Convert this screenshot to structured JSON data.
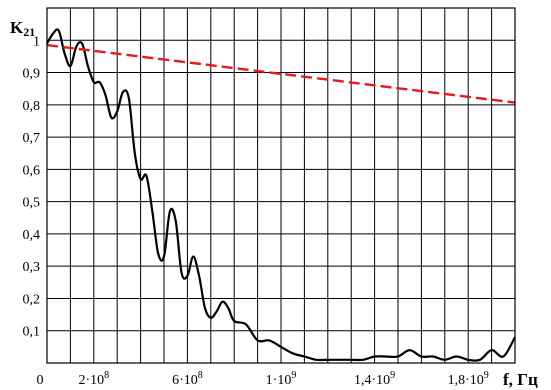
{
  "chart_data": {
    "type": "line",
    "ylabel": "K",
    "ylabel_subscript": "21",
    "xlabel": "f, Гц",
    "xlim": [
      0,
      2000000000
    ],
    "ylim": [
      0,
      1.1
    ],
    "grid": true,
    "y_ticks": [
      {
        "value": 0.1,
        "label": "0,1"
      },
      {
        "value": 0.2,
        "label": "0,2"
      },
      {
        "value": 0.3,
        "label": "0,3"
      },
      {
        "value": 0.4,
        "label": "0,4"
      },
      {
        "value": 0.5,
        "label": "0,5"
      },
      {
        "value": 0.6,
        "label": "0,6"
      },
      {
        "value": 0.7,
        "label": "0,7"
      },
      {
        "value": 0.8,
        "label": "0,8"
      },
      {
        "value": 0.9,
        "label": "0,9"
      },
      {
        "value": 1.0,
        "label": "1"
      }
    ],
    "x_ticks": [
      {
        "value": 0,
        "label": "0",
        "exp": ""
      },
      {
        "value": 200000000,
        "label": "2·10",
        "exp": "8"
      },
      {
        "value": 600000000,
        "label": "6·10",
        "exp": "8"
      },
      {
        "value": 1000000000,
        "label": "1·10",
        "exp": "9"
      },
      {
        "value": 1400000000,
        "label": "1,4·10",
        "exp": "9"
      },
      {
        "value": 1800000000,
        "label": "1,8·10",
        "exp": "9"
      }
    ],
    "series": [
      {
        "color": "#000000",
        "dashed": false,
        "x": [
          0,
          25000000,
          50000000,
          75000000,
          100000000,
          125000000,
          150000000,
          175000000,
          200000000,
          225000000,
          250000000,
          275000000,
          300000000,
          325000000,
          350000000,
          375000000,
          400000000,
          425000000,
          450000000,
          475000000,
          500000000,
          525000000,
          550000000,
          575000000,
          600000000,
          625000000,
          650000000,
          675000000,
          700000000,
          725000000,
          750000000,
          775000000,
          800000000,
          850000000,
          900000000,
          950000000,
          1000000000,
          1050000000,
          1100000000,
          1150000000,
          1200000000,
          1250000000,
          1300000000,
          1350000000,
          1400000000,
          1450000000,
          1500000000,
          1550000000,
          1600000000,
          1650000000,
          1700000000,
          1750000000,
          1800000000,
          1850000000,
          1900000000,
          1950000000,
          2000000000
        ],
        "y": [
          0.99,
          1.02,
          1.03,
          0.96,
          0.92,
          0.98,
          0.99,
          0.92,
          0.87,
          0.87,
          0.83,
          0.76,
          0.78,
          0.84,
          0.82,
          0.65,
          0.57,
          0.58,
          0.47,
          0.34,
          0.33,
          0.47,
          0.44,
          0.28,
          0.27,
          0.33,
          0.27,
          0.17,
          0.14,
          0.16,
          0.19,
          0.17,
          0.13,
          0.12,
          0.07,
          0.07,
          0.05,
          0.03,
          0.02,
          0.01,
          0.01,
          0.01,
          0.01,
          0.01,
          0.02,
          0.02,
          0.02,
          0.04,
          0.02,
          0.02,
          0.01,
          0.02,
          0.01,
          0.01,
          0.04,
          0.02,
          0.08
        ]
      },
      {
        "color": "#e8191b",
        "dashed": true,
        "x": [
          0,
          2000000000
        ],
        "y": [
          0.985,
          0.807
        ]
      }
    ]
  }
}
